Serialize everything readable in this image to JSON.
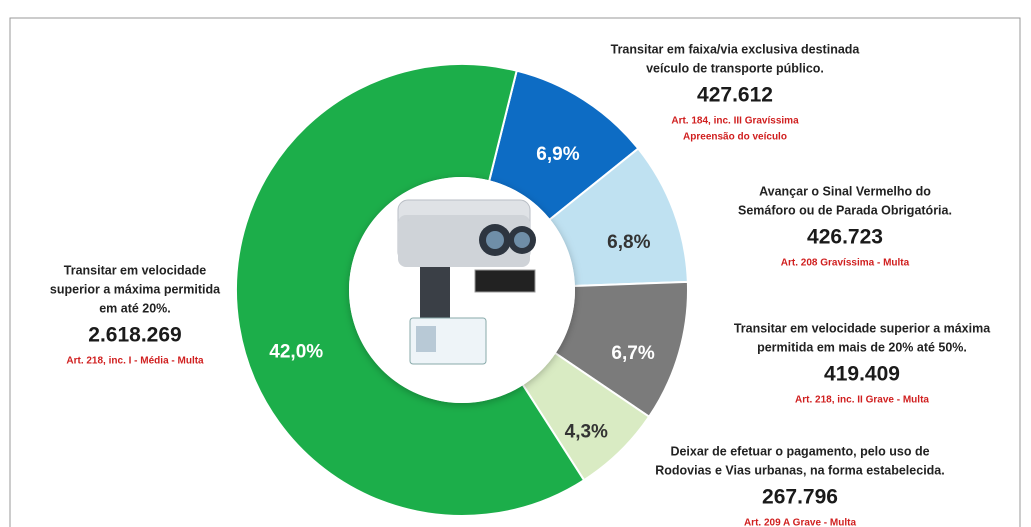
{
  "chart_data": {
    "type": "donut",
    "labels": [
      [
        "Transitar em faixa/via exclusiva destinada",
        "veículo de  transporte  público."
      ],
      [
        "Avançar o Sinal Vermelho do",
        "Semáforo ou de Parada Obrigatória."
      ],
      [
        "Transitar em velocidade superior a máxima",
        "permitida em mais de 20% até 50%."
      ],
      [
        "Deixar de efetuar o pagamento, pelo uso de",
        "Rodovias e Vias urbanas, na forma estabelecida."
      ],
      [
        "Transitar em velocidade",
        "superior a máxima permitida",
        "em até 20%."
      ]
    ],
    "values": [
      6.9,
      6.8,
      6.7,
      4.3,
      42.0
    ],
    "value_labels": [
      "6,9%",
      "6,8%",
      "6,7%",
      "4,3%",
      "42,0%"
    ],
    "counts": [
      427612,
      426723,
      419409,
      267796,
      2618269
    ],
    "count_labels": [
      "427.612",
      "426.723",
      "419.409",
      "267.796",
      "2.618.269"
    ],
    "notes": [
      [
        "Art. 184, inc. III  Gravíssima",
        "Apreensão do veículo"
      ],
      [
        "Art. 208  Gravíssima -  Multa"
      ],
      [
        "Art. 218, inc. II  Grave  - Multa"
      ],
      [
        "Art. 209 A   Grave - Multa"
      ],
      [
        "Art. 218, inc. I  - Média - Multa"
      ]
    ],
    "colors": [
      "#0d6cc4",
      "#bfe1f1",
      "#7b7b7b",
      "#d9ebc3",
      "#1cae4a"
    ],
    "label_colors": [
      "#ffffff",
      "#333333",
      "#ffffff",
      "#333333",
      "#ffffff"
    ]
  }
}
